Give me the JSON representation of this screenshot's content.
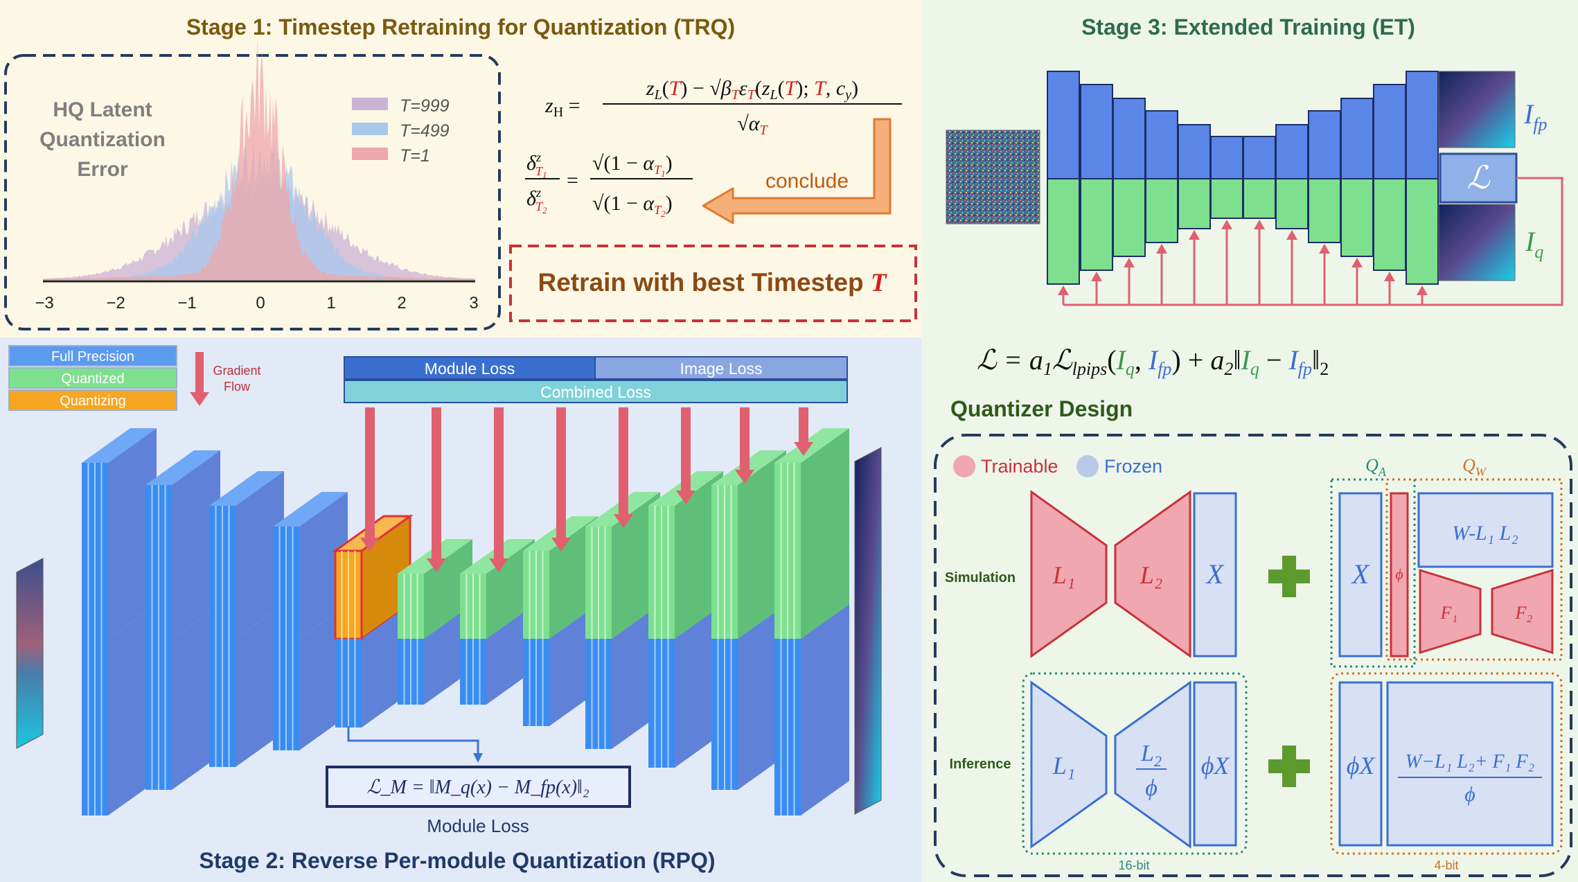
{
  "colors": {
    "stage1_bg": "#fdf7e6",
    "stage2_bg": "#e3eaf7",
    "stage3_bg": "#eef6ea",
    "stage1_title": "#7a5a10",
    "stage2_title": "#1f3a6b",
    "stage3_title": "#2e6b4f",
    "full_precision": "#3b8cf0",
    "quantized": "#7ee08f",
    "quantizing": "#f5a623",
    "trainable": "#f0a7b0",
    "frozen": "#b9c9ea",
    "plus": "#5c9a2e",
    "arrow_red": "#e06070",
    "red_text": "#d42020"
  },
  "stage1": {
    "title": "Stage 1: Timestep Retraining for Quantization (TRQ)",
    "hist": {
      "title_lines": [
        "HQ Latent",
        "Quantization",
        "Error"
      ],
      "legend": [
        "T=999",
        "T=499",
        "T=1"
      ],
      "legend_colors": [
        "#cbb2d6",
        "#a9c8ee",
        "#eea7aa"
      ],
      "ticks": [
        "−3",
        "−2",
        "−1",
        "0",
        "1",
        "2",
        "3"
      ]
    },
    "eq1_lhs": "z",
    "eq1_lhs_sub": "H",
    "eq1_num": "z_L(T) − √β_T ε_T(z_L(T); T, c_y)",
    "eq1_den": "√α_T",
    "eq2_lhs": "δ^z_T1 / δ^z_T2",
    "eq2_rhs": "√(1 − α_T1) / √(1 − α_T2)",
    "conclude": "conclude",
    "retrain": "Retrain with best Timestep",
    "retrain_var": "T"
  },
  "stage2": {
    "title": "Stage 2: Reverse Per-module Quantization (RPQ)",
    "legend": [
      "Full Precision",
      "Quantized",
      "Quantizing"
    ],
    "gradient_flow": [
      "Gradient",
      "Flow"
    ],
    "module_loss_tab": "Module Loss",
    "image_loss_tab": "Image Loss",
    "combined_loss": "Combined Loss",
    "loss_formula": "ℒ_M = ‖M_q(x) − M_fp(x)‖₂",
    "module_loss_caption": "Module Loss"
  },
  "stage3": {
    "title": "Stage 3: Extended Training (ET)",
    "ifp": "I_fp",
    "iq": "I_q",
    "loss_symbol": "ℒ",
    "loss_formula": "ℒ = a₁ℒ_lpips(I_q, I_fp) + a₂‖I_q − I_fp‖₂"
  },
  "quantizer": {
    "title": "Quantizer Design",
    "trainable": "Trainable",
    "frozen": "Frozen",
    "simulation": "Simulation",
    "inference": "Inference",
    "qa": "Q_A",
    "qw": "Q_W",
    "l1": "L₁",
    "l2": "L₂",
    "l2_phi": "L₂ / ϕ",
    "x": "X",
    "phi": "ϕ",
    "phix": "ϕX",
    "w_sim": "W-L₁ L₂",
    "f1": "F₁",
    "f2": "F₂",
    "w_inf_num": "W−L₁ L₂+ F₁ F₂",
    "w_inf_den": "ϕ",
    "bit16": "16-bit",
    "bit4": "4-bit"
  }
}
